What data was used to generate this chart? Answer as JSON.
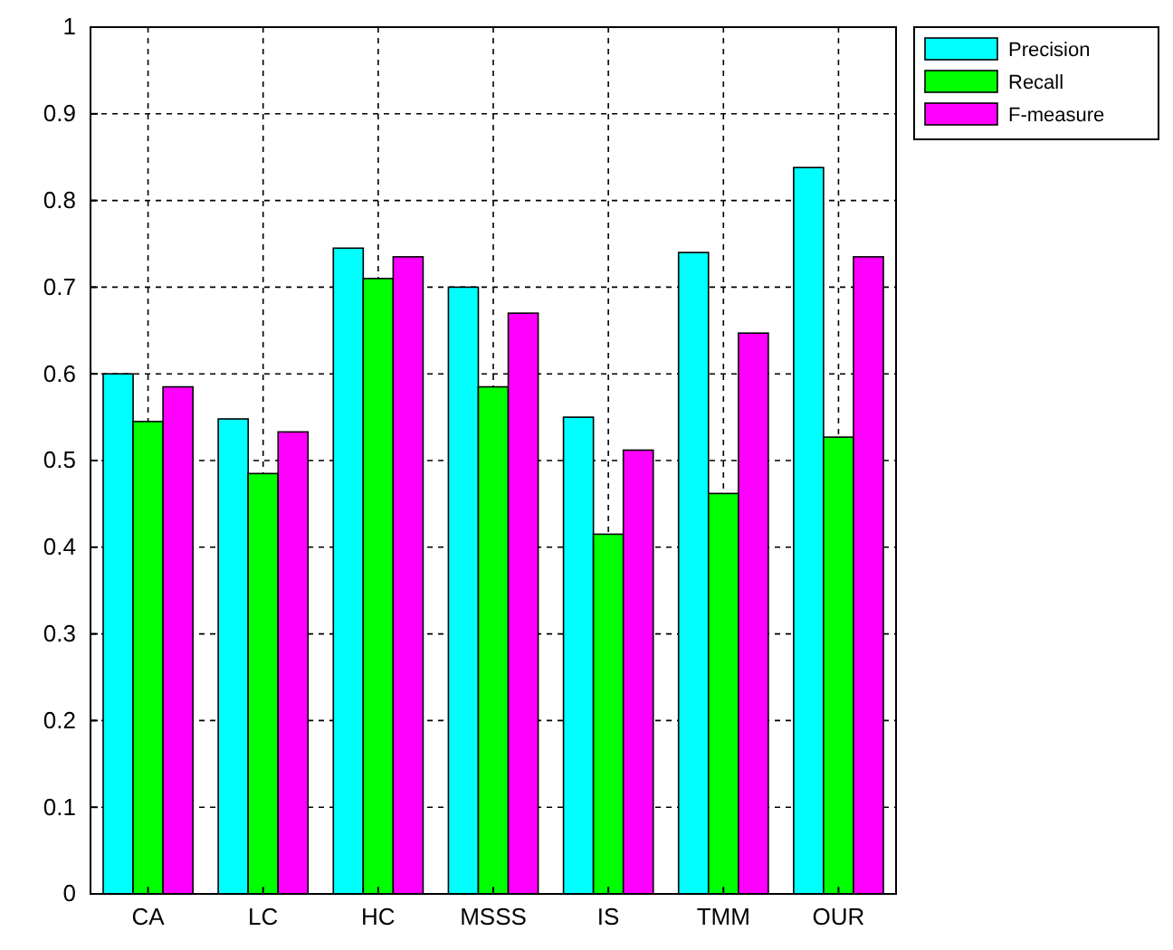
{
  "chart_data": {
    "type": "bar",
    "categories": [
      "CA",
      "LC",
      "HC",
      "MSSS",
      "IS",
      "TMM",
      "OUR"
    ],
    "series": [
      {
        "name": "Precision",
        "color": "#00ffff",
        "values": [
          0.6,
          0.548,
          0.745,
          0.7,
          0.55,
          0.74,
          0.838
        ]
      },
      {
        "name": "Recall",
        "color": "#00ff00",
        "values": [
          0.545,
          0.485,
          0.71,
          0.585,
          0.415,
          0.462,
          0.527
        ]
      },
      {
        "name": "F-measure",
        "color": "#ff00ff",
        "values": [
          0.585,
          0.533,
          0.735,
          0.67,
          0.512,
          0.647,
          0.735
        ]
      }
    ],
    "ylim": [
      0,
      1
    ],
    "yticks": [
      0,
      0.1,
      0.2,
      0.3,
      0.4,
      0.5,
      0.6,
      0.7,
      0.8,
      0.9,
      1
    ],
    "grid": true,
    "legend": "top right"
  }
}
